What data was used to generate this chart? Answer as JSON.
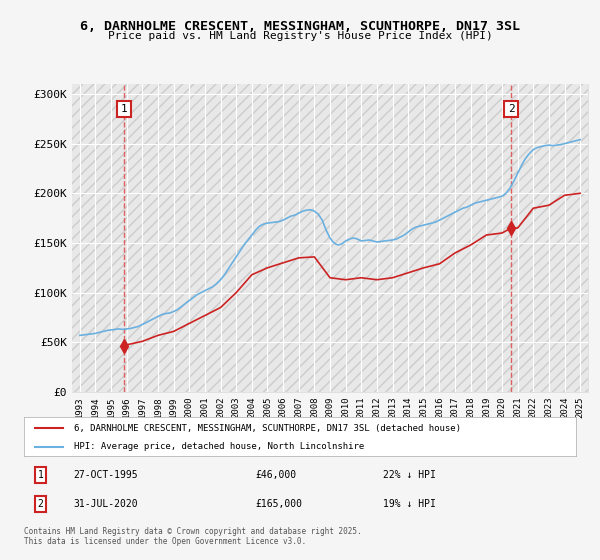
{
  "title_line1": "6, DARNHOLME CRESCENT, MESSINGHAM, SCUNTHORPE, DN17 3SL",
  "title_line2": "Price paid vs. HM Land Registry's House Price Index (HPI)",
  "ylabel": "",
  "xlabel": "",
  "bg_color": "#f0f0f0",
  "plot_bg_color": "#e8e8e8",
  "hatch_color": "#cccccc",
  "grid_color": "#ffffff",
  "hpi_color": "#6ab0e0",
  "price_color": "#cc2222",
  "dashed_line_color": "#e06060",
  "yticks": [
    0,
    50000,
    100000,
    150000,
    200000,
    250000,
    300000
  ],
  "ytick_labels": [
    "£0",
    "£50K",
    "£100K",
    "£150K",
    "£200K",
    "£250K",
    "£300K"
  ],
  "xmin_year": 1993,
  "xmax_year": 2025,
  "xtick_years": [
    1993,
    1994,
    1995,
    1996,
    1997,
    1998,
    1999,
    2000,
    2001,
    2002,
    2003,
    2004,
    2005,
    2006,
    2007,
    2008,
    2009,
    2010,
    2011,
    2012,
    2013,
    2014,
    2015,
    2016,
    2017,
    2018,
    2019,
    2020,
    2021,
    2022,
    2023,
    2024,
    2025
  ],
  "purchase1_x": 1995.83,
  "purchase1_y": 46000,
  "purchase2_x": 2020.58,
  "purchase2_y": 165000,
  "legend_label1": "6, DARNHOLME CRESCENT, MESSINGHAM, SCUNTHORPE, DN17 3SL (detached house)",
  "legend_label2": "HPI: Average price, detached house, North Lincolnshire",
  "note1_num": "1",
  "note1_date": "27-OCT-1995",
  "note1_price": "£46,000",
  "note1_pct": "22% ↓ HPI",
  "note2_num": "2",
  "note2_date": "31-JUL-2020",
  "note2_price": "£165,000",
  "note2_pct": "19% ↓ HPI",
  "copyright": "Contains HM Land Registry data © Crown copyright and database right 2025.\nThis data is licensed under the Open Government Licence v3.0.",
  "hpi_data": {
    "years": [
      1993.0,
      1993.25,
      1993.5,
      1993.75,
      1994.0,
      1994.25,
      1994.5,
      1994.75,
      1995.0,
      1995.25,
      1995.5,
      1995.75,
      1996.0,
      1996.25,
      1996.5,
      1996.75,
      1997.0,
      1997.25,
      1997.5,
      1997.75,
      1998.0,
      1998.25,
      1998.5,
      1998.75,
      1999.0,
      1999.25,
      1999.5,
      1999.75,
      2000.0,
      2000.25,
      2000.5,
      2000.75,
      2001.0,
      2001.25,
      2001.5,
      2001.75,
      2002.0,
      2002.25,
      2002.5,
      2002.75,
      2003.0,
      2003.25,
      2003.5,
      2003.75,
      2004.0,
      2004.25,
      2004.5,
      2004.75,
      2005.0,
      2005.25,
      2005.5,
      2005.75,
      2006.0,
      2006.25,
      2006.5,
      2006.75,
      2007.0,
      2007.25,
      2007.5,
      2007.75,
      2008.0,
      2008.25,
      2008.5,
      2008.75,
      2009.0,
      2009.25,
      2009.5,
      2009.75,
      2010.0,
      2010.25,
      2010.5,
      2010.75,
      2011.0,
      2011.25,
      2011.5,
      2011.75,
      2012.0,
      2012.25,
      2012.5,
      2012.75,
      2013.0,
      2013.25,
      2013.5,
      2013.75,
      2014.0,
      2014.25,
      2014.5,
      2014.75,
      2015.0,
      2015.25,
      2015.5,
      2015.75,
      2016.0,
      2016.25,
      2016.5,
      2016.75,
      2017.0,
      2017.25,
      2017.5,
      2017.75,
      2018.0,
      2018.25,
      2018.5,
      2018.75,
      2019.0,
      2019.25,
      2019.5,
      2019.75,
      2020.0,
      2020.25,
      2020.5,
      2020.75,
      2021.0,
      2021.25,
      2021.5,
      2021.75,
      2022.0,
      2022.25,
      2022.5,
      2022.75,
      2023.0,
      2023.25,
      2023.5,
      2023.75,
      2024.0,
      2024.25,
      2024.5,
      2024.75,
      2025.0
    ],
    "values": [
      57000,
      57500,
      58000,
      58500,
      59000,
      60000,
      61000,
      62000,
      62500,
      63000,
      63500,
      63000,
      63500,
      64000,
      65000,
      66000,
      68000,
      70000,
      72000,
      74000,
      76000,
      78000,
      79000,
      79500,
      81000,
      83000,
      86000,
      89000,
      92000,
      95000,
      98000,
      100000,
      102000,
      104000,
      106000,
      109000,
      113000,
      118000,
      124000,
      130000,
      136000,
      142000,
      148000,
      153000,
      158000,
      163000,
      167000,
      169000,
      170000,
      170500,
      171000,
      171500,
      173000,
      175000,
      177000,
      178000,
      180000,
      182000,
      183000,
      183500,
      182000,
      179000,
      173000,
      163000,
      155000,
      150000,
      148000,
      149000,
      152000,
      154000,
      155000,
      154000,
      152000,
      152500,
      153000,
      152000,
      151000,
      151500,
      152000,
      152500,
      153000,
      154000,
      156000,
      158000,
      161000,
      164000,
      166000,
      167000,
      168000,
      169000,
      170000,
      171000,
      173000,
      175000,
      177000,
      179000,
      181000,
      183000,
      185000,
      186000,
      188000,
      190000,
      191000,
      192000,
      193000,
      194000,
      195000,
      196000,
      197000,
      200000,
      205000,
      212000,
      220000,
      228000,
      235000,
      240000,
      244000,
      246000,
      247000,
      248000,
      248500,
      248000,
      248500,
      249000,
      250000,
      251000,
      252000,
      253000,
      254000
    ]
  },
  "price_data": {
    "years": [
      1995.83,
      1996.0,
      1997.0,
      1998.0,
      1999.0,
      2000.0,
      2001.0,
      2002.0,
      2003.0,
      2004.0,
      2005.0,
      2006.0,
      2007.0,
      2008.0,
      2009.0,
      2010.0,
      2011.0,
      2012.0,
      2013.0,
      2014.0,
      2015.0,
      2016.0,
      2017.0,
      2018.0,
      2019.0,
      2020.0,
      2020.58,
      2021.0,
      2022.0,
      2023.0,
      2024.0,
      2025.0
    ],
    "values": [
      46000,
      47500,
      51000,
      57000,
      61000,
      69000,
      77000,
      85000,
      100000,
      118000,
      125000,
      130000,
      135000,
      136000,
      115000,
      113000,
      115000,
      113000,
      115000,
      120000,
      125000,
      129000,
      140000,
      148000,
      158000,
      160000,
      165000,
      165000,
      185000,
      188000,
      198000,
      200000
    ]
  }
}
